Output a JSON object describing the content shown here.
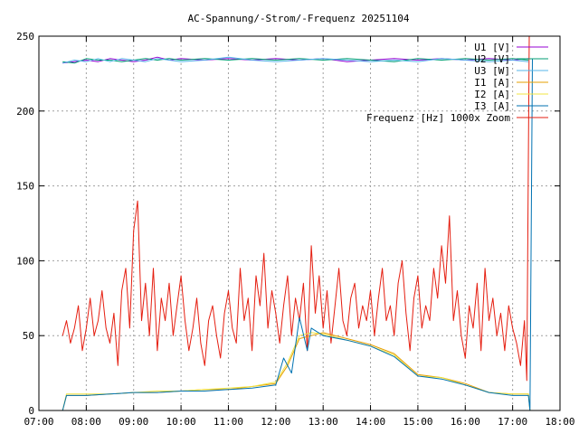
{
  "chart_data": {
    "type": "line",
    "title": "AC-Spannung/-Strom/-Frequenz 20251104",
    "xlabel": "",
    "ylabel": "",
    "x_range": [
      "07:00",
      "18:00"
    ],
    "x_ticks": [
      "07:00",
      "08:00",
      "09:00",
      "10:00",
      "11:00",
      "12:00",
      "13:00",
      "14:00",
      "15:00",
      "16:00",
      "17:00",
      "18:00"
    ],
    "ylim": [
      0,
      250
    ],
    "y_ticks": [
      0,
      50,
      100,
      150,
      200,
      250
    ],
    "grid": true,
    "legend_position": "top-right",
    "series": [
      {
        "name": "U1 [V]",
        "color": "#9400d3",
        "points": [
          [
            "07:30",
            232
          ],
          [
            "07:45",
            233
          ],
          [
            "08:00",
            234
          ],
          [
            "08:15",
            233
          ],
          [
            "08:30",
            235
          ],
          [
            "08:45",
            234
          ],
          [
            "09:00",
            233
          ],
          [
            "09:15",
            234
          ],
          [
            "09:30",
            236
          ],
          [
            "09:45",
            234
          ],
          [
            "10:00",
            235
          ],
          [
            "10:30",
            234
          ],
          [
            "11:00",
            235
          ],
          [
            "11:30",
            234
          ],
          [
            "12:00",
            235
          ],
          [
            "12:30",
            234
          ],
          [
            "13:00",
            235
          ],
          [
            "13:30",
            233
          ],
          [
            "14:00",
            234
          ],
          [
            "14:30",
            235
          ],
          [
            "15:00",
            234
          ],
          [
            "15:30",
            235
          ],
          [
            "16:00",
            234
          ],
          [
            "16:30",
            235
          ],
          [
            "17:00",
            234
          ],
          [
            "17:20",
            235
          ]
        ]
      },
      {
        "name": "U2 [V]",
        "color": "#009e73",
        "points": [
          [
            "07:30",
            233
          ],
          [
            "07:45",
            232
          ],
          [
            "08:00",
            235
          ],
          [
            "08:15",
            234
          ],
          [
            "08:30",
            234
          ],
          [
            "08:45",
            233
          ],
          [
            "09:00",
            234
          ],
          [
            "09:15",
            235
          ],
          [
            "09:30",
            234
          ],
          [
            "09:45",
            235
          ],
          [
            "10:00",
            234
          ],
          [
            "10:30",
            235
          ],
          [
            "11:00",
            234
          ],
          [
            "11:30",
            235
          ],
          [
            "12:00",
            234
          ],
          [
            "12:30",
            235
          ],
          [
            "13:00",
            234
          ],
          [
            "13:30",
            235
          ],
          [
            "14:00",
            234
          ],
          [
            "14:30",
            233
          ],
          [
            "15:00",
            235
          ],
          [
            "15:30",
            234
          ],
          [
            "16:00",
            235
          ],
          [
            "16:30",
            234
          ],
          [
            "17:00",
            235
          ],
          [
            "17:20",
            234
          ]
        ]
      },
      {
        "name": "U3 [W]",
        "color": "#56b4e9",
        "points": [
          [
            "07:30",
            232
          ],
          [
            "07:45",
            234
          ],
          [
            "08:00",
            233
          ],
          [
            "08:15",
            235
          ],
          [
            "08:30",
            233
          ],
          [
            "08:45",
            235
          ],
          [
            "09:00",
            234
          ],
          [
            "09:15",
            233
          ],
          [
            "09:30",
            235
          ],
          [
            "09:45",
            234
          ],
          [
            "10:00",
            233
          ],
          [
            "10:30",
            234
          ],
          [
            "11:00",
            236
          ],
          [
            "11:30",
            234
          ],
          [
            "12:00",
            233
          ],
          [
            "12:30",
            234
          ],
          [
            "13:00",
            235
          ],
          [
            "13:30",
            234
          ],
          [
            "14:00",
            233
          ],
          [
            "14:30",
            234
          ],
          [
            "15:00",
            233
          ],
          [
            "15:30",
            235
          ],
          [
            "16:00",
            234
          ],
          [
            "16:30",
            233
          ],
          [
            "17:00",
            234
          ],
          [
            "17:20",
            233
          ]
        ]
      },
      {
        "name": "I1 [A]",
        "color": "#e69f00",
        "points": [
          [
            "07:30",
            0
          ],
          [
            "07:35",
            10
          ],
          [
            "08:00",
            10
          ],
          [
            "08:30",
            11
          ],
          [
            "09:00",
            12
          ],
          [
            "09:30",
            12
          ],
          [
            "10:00",
            13
          ],
          [
            "10:30",
            14
          ],
          [
            "11:00",
            14
          ],
          [
            "11:30",
            16
          ],
          [
            "12:00",
            18
          ],
          [
            "12:15",
            30
          ],
          [
            "12:30",
            48
          ],
          [
            "12:45",
            50
          ],
          [
            "13:00",
            52
          ],
          [
            "13:30",
            48
          ],
          [
            "14:00",
            44
          ],
          [
            "14:30",
            38
          ],
          [
            "15:00",
            24
          ],
          [
            "15:30",
            22
          ],
          [
            "16:00",
            18
          ],
          [
            "16:30",
            12
          ],
          [
            "17:00",
            11
          ],
          [
            "17:20",
            11
          ],
          [
            "17:22",
            0
          ]
        ]
      },
      {
        "name": "I2 [A]",
        "color": "#f0e442",
        "points": [
          [
            "07:30",
            0
          ],
          [
            "07:35",
            11
          ],
          [
            "08:00",
            11
          ],
          [
            "08:30",
            11
          ],
          [
            "09:00",
            12
          ],
          [
            "09:30",
            13
          ],
          [
            "10:00",
            13
          ],
          [
            "10:30",
            14
          ],
          [
            "11:00",
            15
          ],
          [
            "11:30",
            16
          ],
          [
            "12:00",
            19
          ],
          [
            "12:15",
            32
          ],
          [
            "12:30",
            50
          ],
          [
            "12:45",
            52
          ],
          [
            "13:00",
            51
          ],
          [
            "13:30",
            47
          ],
          [
            "14:00",
            43
          ],
          [
            "14:30",
            37
          ],
          [
            "15:00",
            23
          ],
          [
            "15:30",
            22
          ],
          [
            "16:00",
            17
          ],
          [
            "16:30",
            12
          ],
          [
            "17:00",
            11
          ],
          [
            "17:20",
            11
          ],
          [
            "17:22",
            0
          ]
        ]
      },
      {
        "name": "I3 [A]",
        "color": "#0072b2",
        "points": [
          [
            "07:30",
            0
          ],
          [
            "07:35",
            10
          ],
          [
            "08:00",
            10
          ],
          [
            "08:30",
            11
          ],
          [
            "09:00",
            12
          ],
          [
            "09:30",
            12
          ],
          [
            "10:00",
            13
          ],
          [
            "10:30",
            13
          ],
          [
            "11:00",
            14
          ],
          [
            "11:30",
            15
          ],
          [
            "12:00",
            17
          ],
          [
            "12:10",
            35
          ],
          [
            "12:20",
            25
          ],
          [
            "12:30",
            62
          ],
          [
            "12:40",
            40
          ],
          [
            "12:45",
            55
          ],
          [
            "13:00",
            50
          ],
          [
            "13:30",
            47
          ],
          [
            "14:00",
            43
          ],
          [
            "14:30",
            36
          ],
          [
            "15:00",
            23
          ],
          [
            "15:30",
            21
          ],
          [
            "16:00",
            17
          ],
          [
            "16:30",
            12
          ],
          [
            "17:00",
            10
          ],
          [
            "17:20",
            10
          ],
          [
            "17:22",
            0
          ],
          [
            "17:25",
            235
          ]
        ]
      },
      {
        "name": "Frequenz [Hz] 1000x Zoom",
        "color": "#e51e10",
        "points": [
          [
            "07:30",
            50
          ],
          [
            "07:35",
            60
          ],
          [
            "07:40",
            45
          ],
          [
            "07:45",
            55
          ],
          [
            "07:50",
            70
          ],
          [
            "07:55",
            40
          ],
          [
            "08:00",
            55
          ],
          [
            "08:05",
            75
          ],
          [
            "08:10",
            50
          ],
          [
            "08:15",
            60
          ],
          [
            "08:20",
            80
          ],
          [
            "08:25",
            55
          ],
          [
            "08:30",
            45
          ],
          [
            "08:35",
            65
          ],
          [
            "08:40",
            30
          ],
          [
            "08:45",
            80
          ],
          [
            "08:50",
            95
          ],
          [
            "08:55",
            55
          ],
          [
            "09:00",
            120
          ],
          [
            "09:05",
            140
          ],
          [
            "09:10",
            60
          ],
          [
            "09:15",
            85
          ],
          [
            "09:20",
            50
          ],
          [
            "09:25",
            95
          ],
          [
            "09:30",
            40
          ],
          [
            "09:35",
            75
          ],
          [
            "09:40",
            60
          ],
          [
            "09:45",
            85
          ],
          [
            "09:50",
            50
          ],
          [
            "09:55",
            70
          ],
          [
            "10:00",
            90
          ],
          [
            "10:05",
            60
          ],
          [
            "10:10",
            40
          ],
          [
            "10:15",
            55
          ],
          [
            "10:20",
            75
          ],
          [
            "10:25",
            45
          ],
          [
            "10:30",
            30
          ],
          [
            "10:35",
            60
          ],
          [
            "10:40",
            70
          ],
          [
            "10:45",
            50
          ],
          [
            "10:50",
            35
          ],
          [
            "10:55",
            65
          ],
          [
            "11:00",
            80
          ],
          [
            "11:05",
            55
          ],
          [
            "11:10",
            45
          ],
          [
            "11:15",
            95
          ],
          [
            "11:20",
            60
          ],
          [
            "11:25",
            75
          ],
          [
            "11:30",
            40
          ],
          [
            "11:35",
            90
          ],
          [
            "11:40",
            70
          ],
          [
            "11:45",
            105
          ],
          [
            "11:50",
            55
          ],
          [
            "11:55",
            80
          ],
          [
            "12:00",
            65
          ],
          [
            "12:05",
            45
          ],
          [
            "12:10",
            70
          ],
          [
            "12:15",
            90
          ],
          [
            "12:20",
            50
          ],
          [
            "12:25",
            75
          ],
          [
            "12:30",
            60
          ],
          [
            "12:35",
            85
          ],
          [
            "12:40",
            40
          ],
          [
            "12:45",
            110
          ],
          [
            "12:50",
            65
          ],
          [
            "12:55",
            90
          ],
          [
            "13:00",
            55
          ],
          [
            "13:05",
            80
          ],
          [
            "13:10",
            45
          ],
          [
            "13:15",
            70
          ],
          [
            "13:20",
            95
          ],
          [
            "13:25",
            60
          ],
          [
            "13:30",
            50
          ],
          [
            "13:35",
            75
          ],
          [
            "13:40",
            85
          ],
          [
            "13:45",
            55
          ],
          [
            "13:50",
            70
          ],
          [
            "13:55",
            60
          ],
          [
            "14:00",
            80
          ],
          [
            "14:05",
            50
          ],
          [
            "14:10",
            75
          ],
          [
            "14:15",
            95
          ],
          [
            "14:20",
            60
          ],
          [
            "14:25",
            70
          ],
          [
            "14:30",
            50
          ],
          [
            "14:35",
            85
          ],
          [
            "14:40",
            100
          ],
          [
            "14:45",
            65
          ],
          [
            "14:50",
            40
          ],
          [
            "14:55",
            75
          ],
          [
            "15:00",
            90
          ],
          [
            "15:05",
            55
          ],
          [
            "15:10",
            70
          ],
          [
            "15:15",
            60
          ],
          [
            "15:20",
            95
          ],
          [
            "15:25",
            75
          ],
          [
            "15:30",
            110
          ],
          [
            "15:35",
            85
          ],
          [
            "15:40",
            130
          ],
          [
            "15:45",
            60
          ],
          [
            "15:50",
            80
          ],
          [
            "15:55",
            50
          ],
          [
            "16:00",
            35
          ],
          [
            "16:05",
            70
          ],
          [
            "16:10",
            55
          ],
          [
            "16:15",
            85
          ],
          [
            "16:20",
            40
          ],
          [
            "16:25",
            95
          ],
          [
            "16:30",
            60
          ],
          [
            "16:35",
            75
          ],
          [
            "16:40",
            50
          ],
          [
            "16:45",
            65
          ],
          [
            "16:50",
            40
          ],
          [
            "16:55",
            70
          ],
          [
            "17:00",
            55
          ],
          [
            "17:05",
            45
          ],
          [
            "17:10",
            30
          ],
          [
            "17:15",
            60
          ],
          [
            "17:18",
            20
          ],
          [
            "17:21",
            250
          ]
        ]
      }
    ]
  }
}
